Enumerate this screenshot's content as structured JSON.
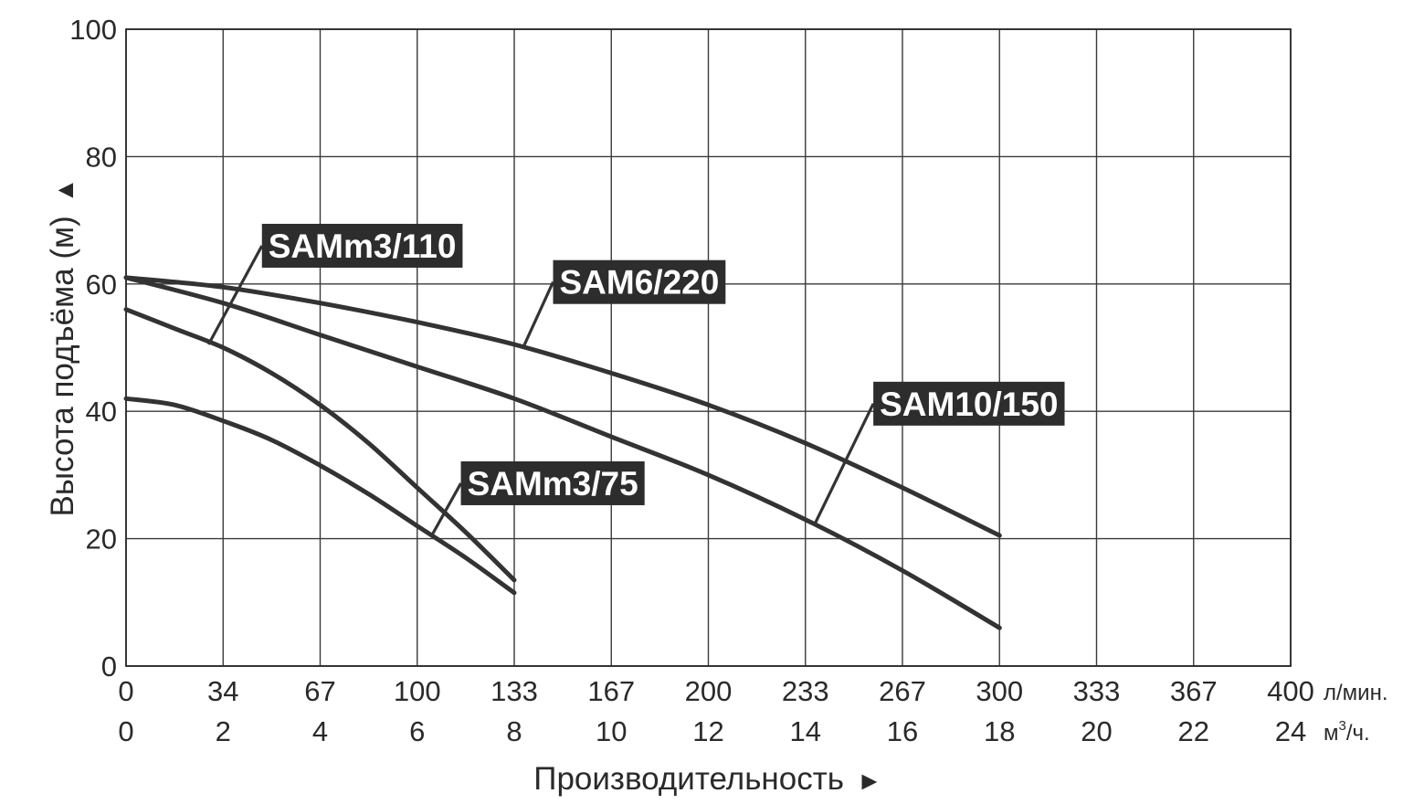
{
  "chart_data": {
    "type": "line",
    "title": "",
    "ylabel": "Высота подъёма (м)",
    "ylabel_arrow": "▲",
    "xlabel": "Производительность",
    "xlabel_arrow": "►",
    "ylim": [
      0,
      100
    ],
    "yticks": [
      "0",
      "20",
      "40",
      "60",
      "80",
      "100"
    ],
    "xlim": [
      0,
      24
    ],
    "x_axis_lpm": {
      "unit": "л/мин.",
      "ticks": [
        "0",
        "34",
        "67",
        "100",
        "133",
        "167",
        "200",
        "233",
        "267",
        "300",
        "333",
        "367",
        "400"
      ]
    },
    "x_axis_m3h": {
      "unit_base": "м",
      "unit_sup": "3",
      "unit_tail": "/ч.",
      "ticks": [
        "0",
        "2",
        "4",
        "6",
        "8",
        "10",
        "12",
        "14",
        "16",
        "18",
        "20",
        "22",
        "24"
      ]
    },
    "grid": true,
    "series": [
      {
        "name": "SAMm3/110",
        "x": [
          0,
          1,
          2,
          3,
          4,
          5,
          6,
          7,
          8
        ],
        "y": [
          56,
          53,
          50,
          46,
          41,
          35,
          28,
          21,
          13.5
        ]
      },
      {
        "name": "SAMm3/75",
        "x": [
          0,
          1,
          2,
          3,
          4,
          5,
          6,
          7,
          8
        ],
        "y": [
          42,
          41,
          38.5,
          35.5,
          31.5,
          27,
          22,
          17,
          11.5
        ]
      },
      {
        "name": "SAM6/220",
        "x": [
          0,
          2,
          4,
          6,
          8,
          10,
          12,
          14,
          16,
          18
        ],
        "y": [
          61,
          59.5,
          57,
          54,
          50.5,
          46,
          41,
          35,
          28,
          20.5
        ]
      },
      {
        "name": "SAM10/150",
        "x": [
          0,
          2,
          4,
          6,
          8,
          10,
          12,
          14,
          16,
          18
        ],
        "y": [
          61,
          57,
          52,
          47,
          42,
          36,
          30,
          23,
          15,
          6
        ]
      }
    ],
    "annotations": [
      {
        "text": "SAMm3/110",
        "series": "SAMm3/110",
        "anchor": [
          1.7,
          50.5
        ],
        "box": [
          2.8,
          66
        ]
      },
      {
        "text": "SAM6/220",
        "series": "SAM6/220",
        "anchor": [
          8.2,
          50.3
        ],
        "box": [
          8.8,
          60.3
        ]
      },
      {
        "text": "SAM10/150",
        "series": "SAM10/150",
        "anchor": [
          14.2,
          22.4
        ],
        "box": [
          15.4,
          41.2
        ]
      },
      {
        "text": "SAMm3/75",
        "series": "SAMm3/75",
        "anchor": [
          6.3,
          20.5
        ],
        "box": [
          6.9,
          28.7
        ]
      }
    ]
  }
}
